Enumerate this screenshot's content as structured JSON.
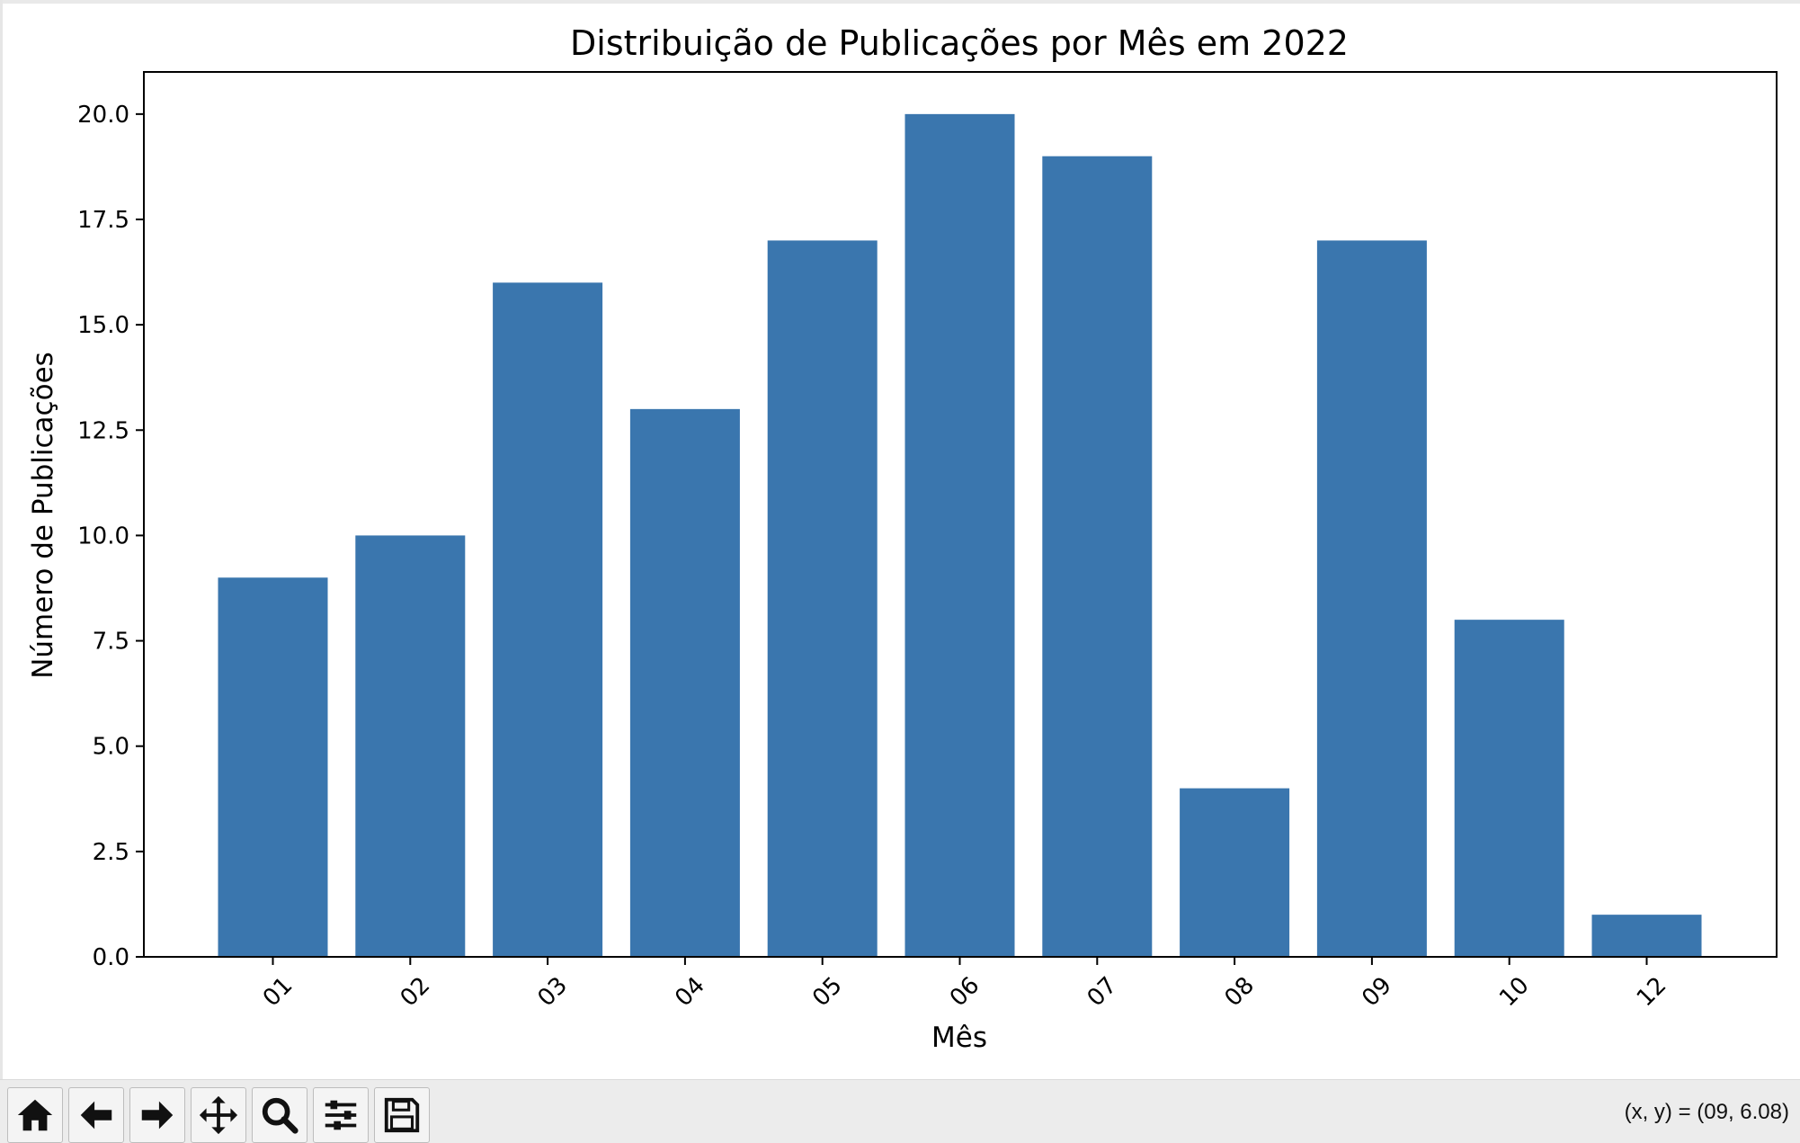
{
  "chart_data": {
    "type": "bar",
    "title": "Distribuição de Publicações por Mês em 2022",
    "xlabel": "Mês",
    "ylabel": "Número de Publicações",
    "categories": [
      "01",
      "02",
      "03",
      "04",
      "05",
      "06",
      "07",
      "08",
      "09",
      "10",
      "12"
    ],
    "values": [
      9,
      10,
      16,
      13,
      17,
      20,
      19,
      4,
      17,
      8,
      1
    ],
    "ylim": [
      0,
      21
    ],
    "yticks": [
      "0.0",
      "2.5",
      "5.0",
      "7.5",
      "10.0",
      "12.5",
      "15.0",
      "17.5",
      "20.0"
    ],
    "ytick_values": [
      0,
      2.5,
      5,
      7.5,
      10,
      12.5,
      15,
      17.5,
      20
    ],
    "bar_color": "#3a76ae",
    "grid": false,
    "xtick_rotation": "45 degrees"
  },
  "toolbar": {
    "buttons": [
      "home-icon",
      "back-icon",
      "forward-icon",
      "pan-icon",
      "zoom-icon",
      "configure-subplots-icon",
      "save-icon"
    ],
    "coordinates": "(x, y) = (09, 6.08)"
  }
}
